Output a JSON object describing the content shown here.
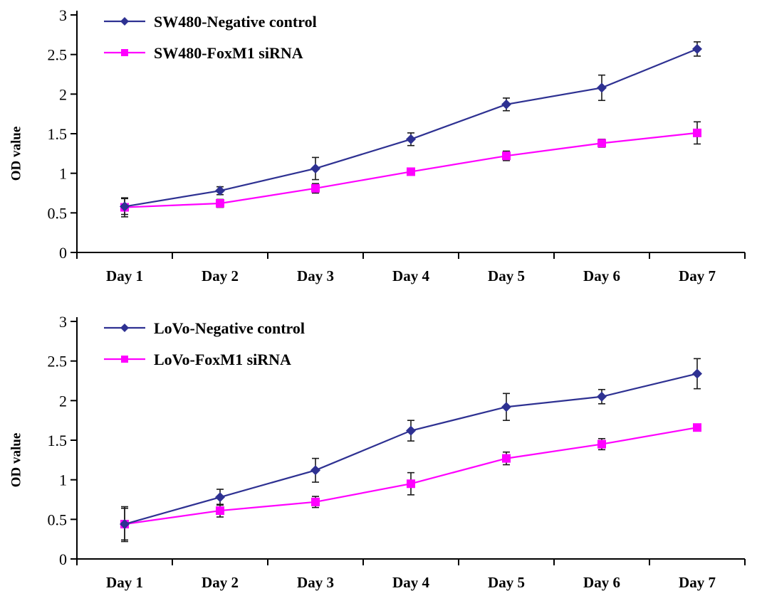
{
  "chart_data": [
    {
      "id": "sw480",
      "type": "line",
      "title": "",
      "xlabel": "",
      "ylabel": "OD value",
      "categories": [
        "Day 1",
        "Day 2",
        "Day 3",
        "Day 4",
        "Day 5",
        "Day 6",
        "Day 7"
      ],
      "ylim": [
        0,
        3
      ],
      "ytick_step": 0.5,
      "ytick_labels": [
        "0",
        "0.5",
        "1",
        "1.5",
        "2",
        "2.5",
        "3"
      ],
      "grid": false,
      "legend_position": "top-left",
      "error_bar_color": "#1a1a1a",
      "series": [
        {
          "name": "SW480-Negative control",
          "color": "#2e3192",
          "marker": "diamond",
          "values": [
            0.58,
            0.78,
            1.06,
            1.43,
            1.87,
            2.08,
            2.57
          ],
          "errors": [
            0.1,
            0.05,
            0.14,
            0.08,
            0.08,
            0.16,
            0.09
          ]
        },
        {
          "name": "SW480-FoxM1 siRNA",
          "color": "#ff00ff",
          "marker": "square",
          "values": [
            0.57,
            0.62,
            0.81,
            1.02,
            1.22,
            1.38,
            1.51
          ],
          "errors": [
            0.12,
            0.05,
            0.06,
            0.04,
            0.06,
            0.05,
            0.14
          ]
        }
      ]
    },
    {
      "id": "lovo",
      "type": "line",
      "title": "",
      "xlabel": "",
      "ylabel": "OD value",
      "categories": [
        "Day 1",
        "Day 2",
        "Day 3",
        "Day 4",
        "Day 5",
        "Day 6",
        "Day 7"
      ],
      "ylim": [
        0,
        3
      ],
      "ytick_step": 0.5,
      "ytick_labels": [
        "0",
        "0.5",
        "1",
        "1.5",
        "2",
        "2.5",
        "3"
      ],
      "grid": false,
      "legend_position": "top-left",
      "error_bar_color": "#1a1a1a",
      "series": [
        {
          "name": "LoVo-Negative control",
          "color": "#2e3192",
          "marker": "diamond",
          "values": [
            0.44,
            0.78,
            1.12,
            1.62,
            1.92,
            2.05,
            2.34
          ],
          "errors": [
            0.22,
            0.1,
            0.15,
            0.13,
            0.17,
            0.09,
            0.19
          ]
        },
        {
          "name": "LoVo-FoxM1 siRNA",
          "color": "#ff00ff",
          "marker": "square",
          "values": [
            0.44,
            0.61,
            0.72,
            0.95,
            1.27,
            1.45,
            1.66
          ],
          "errors": [
            0.2,
            0.08,
            0.07,
            0.14,
            0.08,
            0.07,
            0.04
          ]
        }
      ]
    }
  ]
}
